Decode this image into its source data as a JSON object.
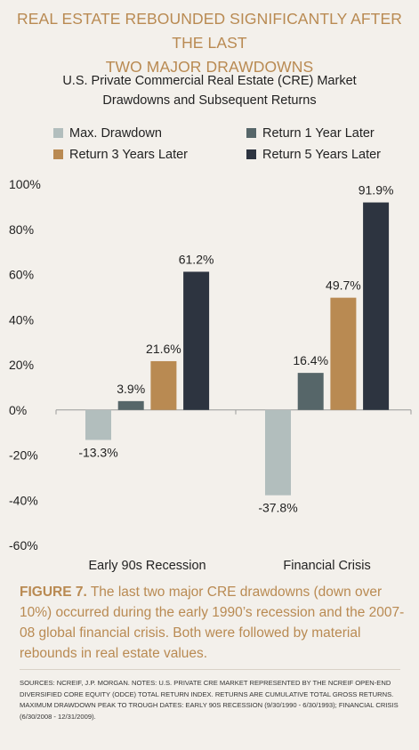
{
  "headline": {
    "line1": "REAL ESTATE REBOUNDED SIGNIFICANTLY AFTER THE LAST",
    "line2": "TWO MAJOR DRAWDOWNS"
  },
  "caption": {
    "figure_label": "FIGURE 7.",
    "text": "The last two major CRE drawdowns (down over 10%) occurred during the early 1990’s recession and the 2007-08 global financial crisis. Both were followed by material rebounds in real estate values."
  },
  "sources": "Sources: NCREIF, J.P. Morgan. Notes: U.S. Private CRE market represented by the NCREIF Open-end Diversified Core Equity (ODCE) Total Return Index. Returns are cumulative total gross returns. Maximum drawdown peak to trough dates: Early 90s Recession (9/30/1990 - 6/30/1993); Financial Crisis (6/30/2008 - 12/31/2009).",
  "chart_data": {
    "type": "bar",
    "title_lines": [
      "U.S. Private Commercial Real Estate (CRE) Market",
      "Drawdowns and Subsequent Returns"
    ],
    "categories": [
      "Early 90s Recession",
      "Financial Crisis"
    ],
    "series": [
      {
        "name": "Max. Drawdown",
        "color": "#b2bebd",
        "values": [
          -13.3,
          -37.8
        ],
        "labels": [
          "-13.3%",
          "-37.8%"
        ]
      },
      {
        "name": "Return 1 Year Later",
        "color": "#566669",
        "values": [
          3.9,
          16.4
        ],
        "labels": [
          "3.9%",
          "16.4%"
        ]
      },
      {
        "name": "Return 3 Years Later",
        "color": "#b98a52",
        "values": [
          21.6,
          49.7
        ],
        "labels": [
          "21.6%",
          "49.7%"
        ]
      },
      {
        "name": "Return 5 Years Later",
        "color": "#2d3440",
        "values": [
          61.2,
          91.9
        ],
        "labels": [
          "61.2%",
          "91.9%"
        ]
      }
    ],
    "ylim": [
      -60,
      100
    ],
    "yticks": [
      100,
      80,
      60,
      40,
      20,
      0,
      -20,
      -40,
      -60
    ],
    "ytick_labels": [
      "100%",
      "80%",
      "60%",
      "40%",
      "20%",
      "0%",
      "-20%",
      "-40%",
      "-60%"
    ],
    "legend_position": "top",
    "grid": false
  }
}
